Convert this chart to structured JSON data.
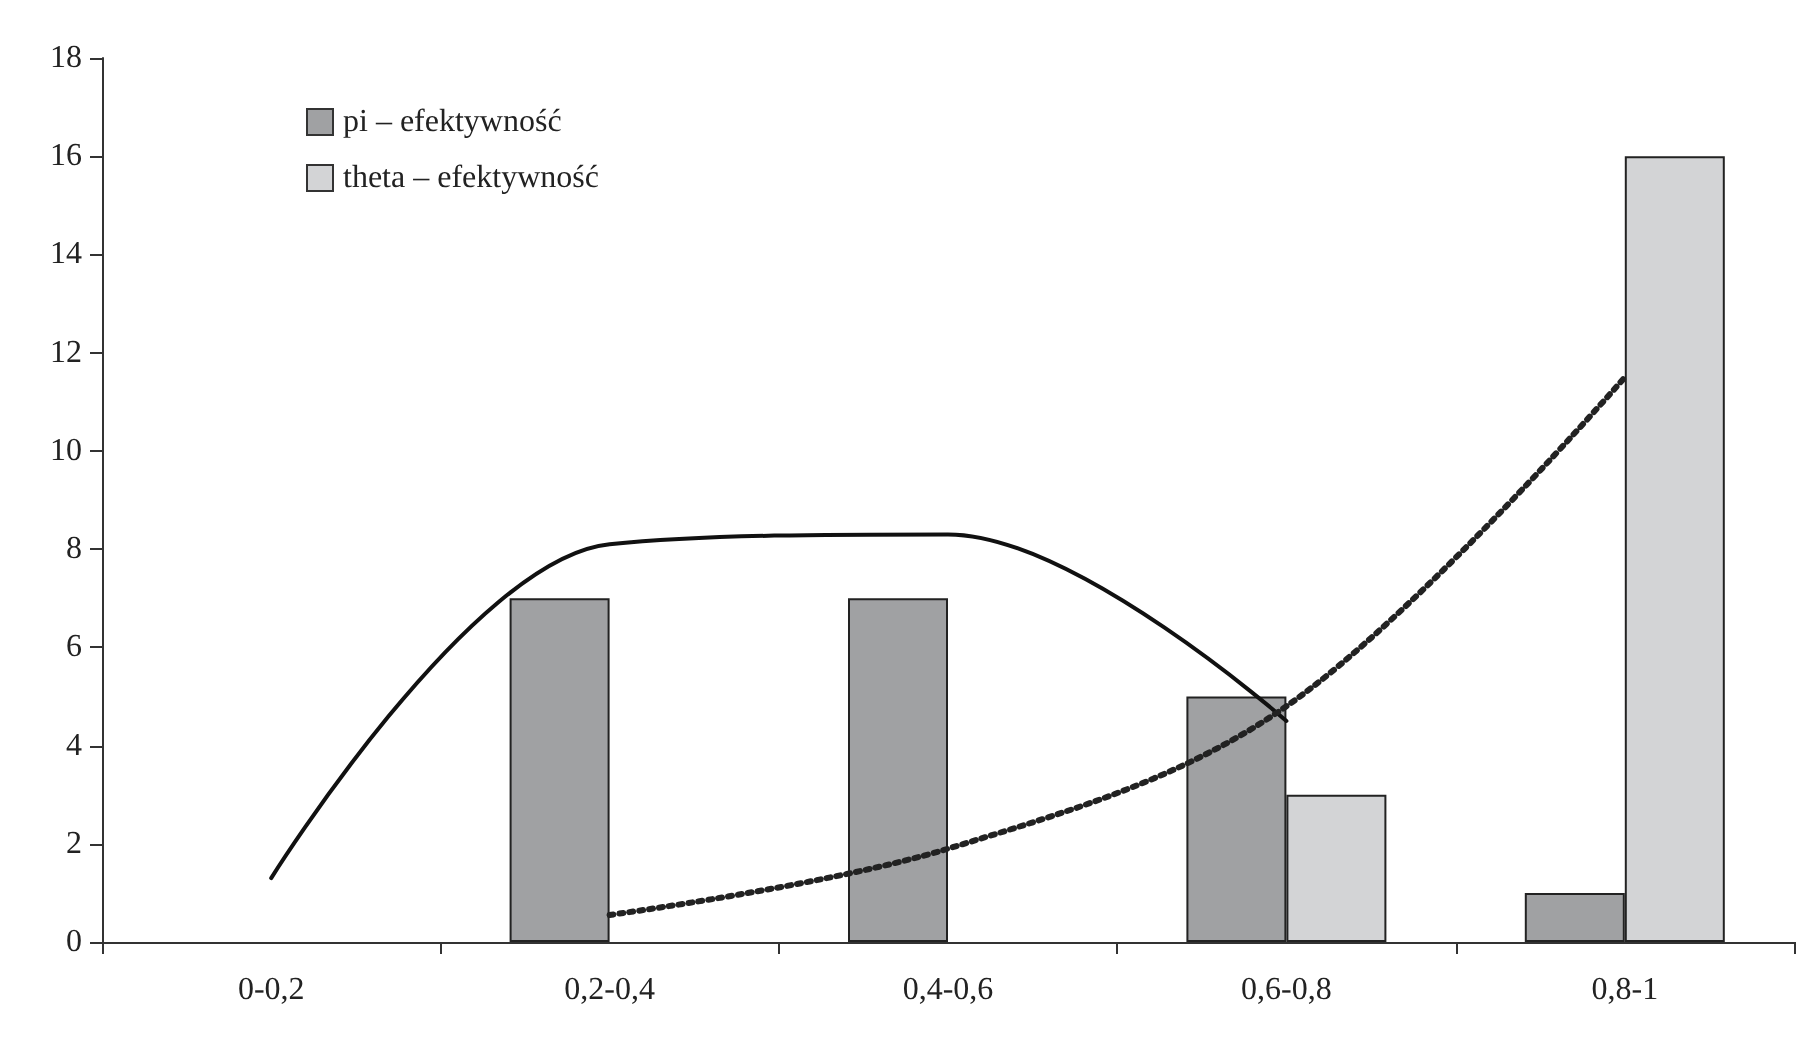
{
  "chart_data": {
    "type": "bar",
    "categories": [
      "0-0,2",
      "0,2-0,4",
      "0,4-0,6",
      "0,6-0,8",
      "0,8-1"
    ],
    "series": [
      {
        "name": "pi – efektywność",
        "color": "#a0a1a3",
        "values": [
          null,
          7,
          7,
          5,
          1
        ]
      },
      {
        "name": "theta – efektywność",
        "color": "#d3d4d6",
        "values": [
          null,
          null,
          null,
          3,
          16
        ]
      },
      {
        "type": "line",
        "color": "#111111",
        "line_style": "solid",
        "marker": "none",
        "values": [
          1.3,
          8.1,
          8.3,
          4.5,
          null
        ]
      },
      {
        "type": "line",
        "color": "#222222",
        "line_style": "dotted",
        "marker": "none",
        "values": [
          null,
          0.55,
          1.9,
          4.8,
          11.5
        ]
      }
    ],
    "ylim": [
      0,
      18
    ],
    "yticks": [
      0,
      2,
      4,
      6,
      8,
      10,
      12,
      14,
      16,
      18
    ],
    "grid": false,
    "legend": "top left"
  }
}
